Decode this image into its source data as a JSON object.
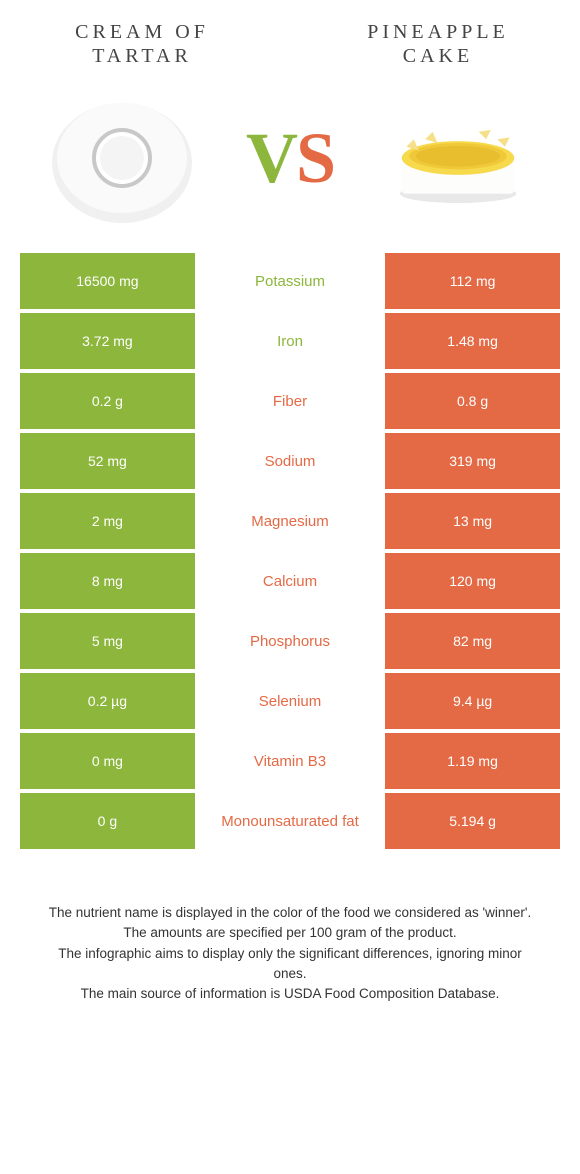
{
  "colors": {
    "left": "#8cb63c",
    "right": "#e46a45",
    "left_text": "#8cb63c",
    "right_text": "#e46a45",
    "cell_text": "#ffffff",
    "midbg": "#ffffff"
  },
  "header": {
    "left_title": "Cream of tartar",
    "right_title": "Pineapple cake",
    "vs_v": "V",
    "vs_s": "S"
  },
  "rows": [
    {
      "left": "16500 mg",
      "label": "Potassium",
      "right": "112 mg",
      "winner": "left"
    },
    {
      "left": "3.72 mg",
      "label": "Iron",
      "right": "1.48 mg",
      "winner": "left"
    },
    {
      "left": "0.2 g",
      "label": "Fiber",
      "right": "0.8 g",
      "winner": "right"
    },
    {
      "left": "52 mg",
      "label": "Sodium",
      "right": "319 mg",
      "winner": "right"
    },
    {
      "left": "2 mg",
      "label": "Magnesium",
      "right": "13 mg",
      "winner": "right"
    },
    {
      "left": "8 mg",
      "label": "Calcium",
      "right": "120 mg",
      "winner": "right"
    },
    {
      "left": "5 mg",
      "label": "Phosphorus",
      "right": "82 mg",
      "winner": "right"
    },
    {
      "left": "0.2 µg",
      "label": "Selenium",
      "right": "9.4 µg",
      "winner": "right"
    },
    {
      "left": "0 mg",
      "label": "Vitamin B3",
      "right": "1.19 mg",
      "winner": "right"
    },
    {
      "left": "0 g",
      "label": "Monounsaturated fat",
      "right": "5.194 g",
      "winner": "right"
    }
  ],
  "footer": {
    "l1": "The nutrient name is displayed in the color of the food we considered as 'winner'.",
    "l2": "The amounts are specified per 100 gram of the product.",
    "l3": "The infographic aims to display only the significant differences, ignoring minor ones.",
    "l4": "The main source of information is USDA Food Composition Database."
  }
}
